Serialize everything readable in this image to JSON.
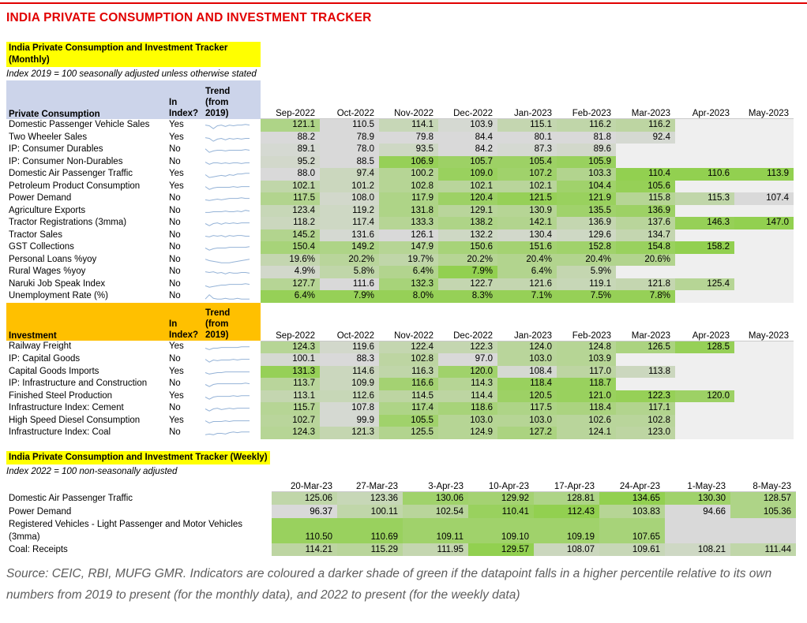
{
  "page_title": "INDIA PRIVATE CONSUMPTION AND INVESTMENT TRACKER",
  "colors": {
    "title_red": "#e10000",
    "highlight_yellow": "#ffff00",
    "consumption_header_bg": "#ccd4ea",
    "investment_header_bg": "#ffc000",
    "cell_grey": "#d9d9d9",
    "cell_green": "#92d050",
    "cell_empty": "#efefef",
    "sparkline_blue": "#95b3d7",
    "source_grey": "#5d5d5d"
  },
  "monthly": {
    "heading": "India Private Consumption and Investment Tracker (Monthly)",
    "note": "Index 2019 = 100 seasonally adjusted unless otherwise stated",
    "in_index_header": "In\nIndex?",
    "trend_header": "Trend\n(from\n2019)",
    "months": [
      "Sep-2022",
      "Oct-2022",
      "Nov-2022",
      "Dec-2022",
      "Jan-2023",
      "Feb-2023",
      "Mar-2023",
      "Apr-2023",
      "May-2023"
    ],
    "consumption": {
      "section_label": "Private Consumption",
      "rows": [
        {
          "label": "Domestic Passenger Vehicle Sales",
          "in_index": "Yes",
          "values": [
            "121.1",
            "110.5",
            "114.1",
            "103.9",
            "115.1",
            "116.2",
            "116.2",
            "",
            ""
          ],
          "shades": [
            0.6,
            0,
            0.25,
            0.05,
            0.3,
            0.35,
            0.4,
            null,
            null
          ],
          "spark": [
            6,
            5,
            1,
            5,
            6,
            4,
            6,
            5,
            6,
            6,
            7,
            6
          ]
        },
        {
          "label": "Two Wheeler Sales",
          "in_index": "Yes",
          "values": [
            "88.2",
            "78.9",
            "79.8",
            "84.4",
            "80.1",
            "81.8",
            "92.4",
            "",
            ""
          ],
          "shades": [
            0,
            0,
            0,
            0,
            0,
            0,
            0.05,
            null,
            null
          ],
          "spark": [
            6,
            5,
            1,
            4,
            5,
            3,
            5,
            4,
            5,
            4,
            5,
            5
          ]
        },
        {
          "label": "IP: Consumer Durables",
          "in_index": "No",
          "values": [
            "89.1",
            "78.0",
            "93.5",
            "84.2",
            "87.3",
            "89.6",
            "",
            "",
            ""
          ],
          "shades": [
            0.05,
            0,
            0.15,
            0,
            0.05,
            0.1,
            null,
            null,
            null
          ],
          "spark": [
            7,
            2,
            4,
            5,
            5,
            4,
            5,
            5,
            5,
            5,
            6,
            5
          ]
        },
        {
          "label": "IP: Consumer Non-Durables",
          "in_index": "No",
          "values": [
            "95.2",
            "88.5",
            "106.9",
            "105.7",
            "105.4",
            "105.9",
            "",
            "",
            ""
          ],
          "shades": [
            0.1,
            0,
            0.95,
            0.85,
            0.85,
            0.9,
            null,
            null,
            null
          ],
          "spark": [
            6,
            3,
            5,
            5,
            4,
            5,
            4,
            5,
            5,
            4,
            5,
            5
          ]
        },
        {
          "label": "Domestic Air Passenger Traffic",
          "in_index": "Yes",
          "values": [
            "88.0",
            "97.4",
            "100.2",
            "109.0",
            "107.2",
            "103.3",
            "110.4",
            "110.6",
            "113.9"
          ],
          "shades": [
            0,
            0.2,
            0.5,
            0.9,
            0.8,
            0.55,
            1,
            1,
            1
          ],
          "spark": [
            5,
            1,
            2,
            3,
            4,
            3,
            5,
            4,
            6,
            6,
            7,
            7
          ]
        },
        {
          "label": "Petroleum Product Consumption",
          "in_index": "Yes",
          "values": [
            "102.1",
            "101.2",
            "102.8",
            "102.1",
            "102.1",
            "104.4",
            "105.6",
            "",
            ""
          ],
          "shades": [
            0.35,
            0.2,
            0.5,
            0.45,
            0.45,
            0.8,
            0.95,
            null,
            null
          ],
          "spark": [
            6,
            2,
            4,
            5,
            5,
            5,
            5,
            6,
            5,
            6,
            6,
            6
          ]
        },
        {
          "label": "Power Demand",
          "in_index": "No",
          "values": [
            "117.5",
            "108.0",
            "117.9",
            "120.4",
            "121.5",
            "121.9",
            "115.8",
            "115.3",
            "107.4"
          ],
          "shades": [
            0.55,
            0.1,
            0.6,
            0.85,
            0.95,
            0.9,
            0.5,
            0.35,
            0
          ],
          "spark": [
            4,
            3,
            4,
            5,
            4,
            5,
            6,
            6,
            6,
            7,
            6,
            6
          ]
        },
        {
          "label": "Agriculture Exports",
          "in_index": "No",
          "values": [
            "123.4",
            "119.2",
            "131.8",
            "129.1",
            "130.9",
            "135.5",
            "136.9",
            "",
            ""
          ],
          "shades": [
            0.25,
            0.15,
            0.6,
            0.45,
            0.5,
            0.8,
            0.85,
            null,
            null
          ],
          "spark": [
            4,
            4,
            5,
            5,
            5,
            6,
            5,
            5,
            6,
            5,
            7,
            6
          ]
        },
        {
          "label": "Tractor Registrations (3mma)",
          "in_index": "No",
          "values": [
            "118.2",
            "117.4",
            "133.3",
            "138.2",
            "142.1",
            "136.9",
            "137.6",
            "146.3",
            "147.0"
          ],
          "shades": [
            0.2,
            0.15,
            0.5,
            0.6,
            0.55,
            0.3,
            0.45,
            0.95,
            1
          ],
          "spark": [
            5,
            2,
            5,
            6,
            4,
            6,
            5,
            6,
            5,
            6,
            6,
            6
          ]
        },
        {
          "label": "Tractor Sales",
          "in_index": "No",
          "values": [
            "145.2",
            "131.6",
            "126.1",
            "132.2",
            "130.4",
            "129.6",
            "134.7",
            "",
            ""
          ],
          "shades": [
            0.55,
            0.05,
            0,
            0.15,
            0.1,
            0.15,
            0.3,
            null,
            null
          ],
          "spark": [
            5,
            4,
            6,
            5,
            6,
            4,
            6,
            5,
            6,
            6,
            5,
            5
          ]
        },
        {
          "label": "GST Collections",
          "in_index": "No",
          "values": [
            "150.4",
            "149.2",
            "147.9",
            "150.6",
            "151.6",
            "152.8",
            "154.8",
            "158.2",
            ""
          ],
          "shades": [
            0.7,
            0.6,
            0.5,
            0.7,
            0.75,
            0.8,
            0.9,
            1,
            null
          ],
          "spark": [
            5,
            2,
            4,
            5,
            5,
            5,
            6,
            6,
            6,
            6,
            6,
            7
          ]
        },
        {
          "label": "Personal Loans %yoy",
          "in_index": "No",
          "values": [
            "19.6%",
            "20.2%",
            "19.7%",
            "20.2%",
            "20.4%",
            "20.4%",
            "20.6%",
            "",
            ""
          ],
          "shades": [
            0.3,
            0.45,
            0.35,
            0.5,
            0.55,
            0.55,
            0.55,
            null,
            null
          ],
          "spark": [
            7,
            5,
            4,
            3,
            2,
            2,
            2,
            3,
            4,
            5,
            6,
            7
          ]
        },
        {
          "label": "Rural Wages %yoy",
          "in_index": "No",
          "values": [
            "4.9%",
            "5.8%",
            "6.4%",
            "7.9%",
            "6.4%",
            "5.9%",
            "",
            "",
            ""
          ],
          "shades": [
            0.1,
            0.35,
            0.55,
            1,
            0.55,
            0.3,
            null,
            null,
            null
          ],
          "spark": [
            6,
            5,
            6,
            4,
            5,
            3,
            5,
            4,
            4,
            5,
            5,
            4
          ]
        },
        {
          "label": "Naruki Job Speak Index",
          "in_index": "No",
          "values": [
            "127.7",
            "111.6",
            "132.3",
            "122.7",
            "121.6",
            "119.1",
            "121.8",
            "125.4",
            ""
          ],
          "shades": [
            0.5,
            0,
            0.7,
            0.3,
            0.3,
            0.25,
            0.3,
            0.5,
            null
          ],
          "spark": [
            4,
            2,
            3,
            4,
            5,
            5,
            6,
            6,
            6,
            6,
            7,
            6
          ]
        },
        {
          "label": "Unemployment Rate (%)",
          "in_index": "No",
          "values": [
            "6.4%",
            "7.9%",
            "8.0%",
            "8.3%",
            "7.1%",
            "7.5%",
            "7.8%",
            "",
            ""
          ],
          "shades": [
            0.95,
            0.95,
            0.95,
            0.95,
            0.95,
            0.95,
            0.95,
            null,
            null
          ],
          "spark": [
            2,
            8,
            3,
            2,
            2,
            3,
            2,
            2,
            3,
            2,
            2,
            2
          ]
        }
      ]
    },
    "investment": {
      "section_label": "Investment",
      "rows": [
        {
          "label": "Railway Freight",
          "in_index": "Yes",
          "values": [
            "124.3",
            "119.6",
            "122.4",
            "122.3",
            "124.0",
            "124.8",
            "126.5",
            "128.5",
            ""
          ],
          "shades": [
            0.5,
            0.1,
            0.3,
            0.3,
            0.45,
            0.5,
            0.65,
            0.95,
            null
          ],
          "spark": [
            5,
            3,
            5,
            5,
            6,
            6,
            6,
            6,
            6,
            7,
            7,
            7
          ]
        },
        {
          "label": "IP: Capital Goods",
          "in_index": "No",
          "values": [
            "100.1",
            "88.3",
            "102.8",
            "97.0",
            "103.0",
            "103.9",
            "",
            "",
            ""
          ],
          "shades": [
            0.05,
            0,
            0.4,
            0,
            0.45,
            0.5,
            null,
            null,
            null
          ],
          "spark": [
            6,
            2,
            5,
            4,
            5,
            5,
            5,
            6,
            5,
            6,
            6,
            6
          ]
        },
        {
          "label": "Capital Goods Imports",
          "in_index": "Yes",
          "values": [
            "131.3",
            "114.6",
            "116.3",
            "120.0",
            "108.4",
            "117.0",
            "113.8",
            "",
            ""
          ],
          "shades": [
            0.95,
            0.2,
            0.35,
            0.8,
            0.05,
            0.4,
            0.2,
            null,
            null
          ],
          "spark": [
            5,
            3,
            4,
            5,
            5,
            6,
            6,
            6,
            6,
            6,
            6,
            6
          ]
        },
        {
          "label": "IP: Infrastructure and Construction",
          "in_index": "No",
          "values": [
            "113.7",
            "109.9",
            "116.6",
            "114.3",
            "118.4",
            "118.7",
            "",
            "",
            ""
          ],
          "shades": [
            0.45,
            0.2,
            0.75,
            0.5,
            0.9,
            0.9,
            null,
            null,
            null
          ],
          "spark": [
            5,
            2,
            5,
            6,
            6,
            6,
            6,
            6,
            6,
            6,
            7,
            6
          ]
        },
        {
          "label": "Finished Steel Production",
          "in_index": "Yes",
          "values": [
            "113.1",
            "112.6",
            "114.5",
            "114.4",
            "120.5",
            "121.0",
            "122.3",
            "120.0",
            ""
          ],
          "shades": [
            0.3,
            0.25,
            0.4,
            0.4,
            0.85,
            0.9,
            0.95,
            0.85,
            null
          ],
          "spark": [
            5,
            2,
            5,
            6,
            6,
            6,
            6,
            7,
            6,
            7,
            7,
            7
          ]
        },
        {
          "label": "Infrastructure Index: Cement",
          "in_index": "No",
          "values": [
            "115.7",
            "107.8",
            "117.4",
            "118.6",
            "117.5",
            "118.4",
            "117.1",
            "",
            ""
          ],
          "shades": [
            0.5,
            0.05,
            0.6,
            0.7,
            0.6,
            0.65,
            0.55,
            null,
            null
          ],
          "spark": [
            5,
            2,
            5,
            6,
            4,
            5,
            6,
            5,
            6,
            6,
            6,
            6
          ]
        },
        {
          "label": "High Speed Diesel Consumption",
          "in_index": "Yes",
          "values": [
            "102.7",
            "99.9",
            "105.5",
            "103.0",
            "103.0",
            "102.6",
            "102.8",
            "",
            ""
          ],
          "shades": [
            0.45,
            0.05,
            0.8,
            0.5,
            0.5,
            0.45,
            0.45,
            null,
            null
          ],
          "spark": [
            6,
            3,
            5,
            5,
            5,
            6,
            5,
            6,
            6,
            6,
            6,
            6
          ]
        },
        {
          "label": "Infrastructure Index: Coal",
          "in_index": "No",
          "values": [
            "124.3",
            "121.3",
            "125.5",
            "124.9",
            "127.2",
            "124.1",
            "123.0",
            "",
            ""
          ],
          "shades": [
            0.5,
            0.3,
            0.55,
            0.5,
            0.65,
            0.45,
            0.4,
            null,
            null
          ],
          "spark": [
            3,
            4,
            3,
            5,
            5,
            4,
            6,
            7,
            6,
            7,
            7,
            7
          ]
        }
      ]
    }
  },
  "weekly": {
    "heading": "India Private Consumption and Investment Tracker (Weekly)",
    "note": "Index 2022 = 100 non-seasonally adjusted",
    "dates": [
      "20-Mar-23",
      "27-Mar-23",
      "3-Apr-23",
      "10-Apr-23",
      "17-Apr-23",
      "24-Apr-23",
      "1-May-23",
      "8-May-23"
    ],
    "rows": [
      {
        "label": "Domestic Air Passenger Traffic",
        "values": [
          "125.06",
          "123.36",
          "130.06",
          "129.92",
          "128.81",
          "134.65",
          "130.30",
          "128.57"
        ],
        "shades": [
          0.35,
          0.25,
          0.8,
          0.75,
          0.6,
          1,
          0.8,
          0.6
        ]
      },
      {
        "label": "Power Demand",
        "values": [
          "96.37",
          "100.11",
          "102.54",
          "110.41",
          "112.43",
          "103.83",
          "94.66",
          "105.36"
        ],
        "shades": [
          0,
          0.35,
          0.45,
          0.9,
          1,
          0.5,
          0,
          0.6
        ]
      },
      {
        "label": "Registered Vehicles - Light Passenger and Motor Vehicles (3mma)",
        "values": [
          "110.50",
          "110.69",
          "109.11",
          "109.10",
          "109.19",
          "107.65",
          "",
          ""
        ],
        "shades": [
          0.9,
          0.9,
          0.8,
          0.8,
          0.8,
          0.7,
          0,
          0
        ]
      },
      {
        "label": "Coal: Receipts",
        "values": [
          "114.21",
          "115.29",
          "111.95",
          "129.57",
          "108.07",
          "109.61",
          "108.21",
          "111.44"
        ],
        "shades": [
          0.4,
          0.45,
          0.3,
          1,
          0.2,
          0.25,
          0.15,
          0.35
        ]
      }
    ]
  },
  "source_note": "Source: CEIC, RBI, MUFG GMR. Indicators are coloured a darker shade of green if the datapoint falls in a higher percentile relative to its own numbers from 2019 to present (for the monthly data), and 2022 to present (for the weekly data)"
}
